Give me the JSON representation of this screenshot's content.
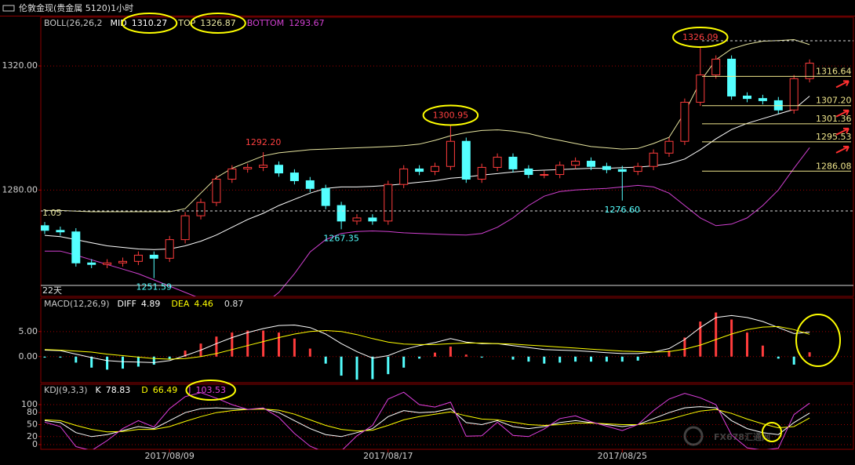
{
  "header": {
    "title": "伦敦金现(贵金属 5120)1小时"
  },
  "watermark": "FX678汇通网",
  "chart_data": [
    {
      "type": "candlestick",
      "indicator": "BOLL(26,26,2",
      "period_note": "22天",
      "edge_label": "1.05",
      "ylim": [
        1245.7,
        1335.7
      ],
      "yticks": [
        {
          "value": 1320,
          "label": "1320.00"
        },
        {
          "value": 1280,
          "label": "1280.00"
        }
      ],
      "grid": true,
      "up_color": "#ff3c3c",
      "down_color": "#54ffff",
      "open": [
        1268.5,
        1267,
        1266.5,
        1256.5,
        1256,
        1256.5,
        1257,
        1259,
        1258,
        1264,
        1271.7,
        1276,
        1283.5,
        1286.8,
        1287.3,
        1288,
        1285.5,
        1283,
        1280.5,
        1275,
        1270,
        1271,
        1270,
        1281.8,
        1286.8,
        1286,
        1287.6,
        1295.7,
        1283.5,
        1287.3,
        1290.6,
        1286.8,
        1285,
        1285,
        1288,
        1289.3,
        1287.6,
        1286.6,
        1286,
        1287.6,
        1291.9,
        1295.7,
        1308.3,
        1317.1,
        1322.2,
        1310.3,
        1309.5,
        1308.8,
        1305.8,
        1315.9
      ],
      "high": [
        1269.7,
        1268.2,
        1267.7,
        1257.7,
        1257.7,
        1258.2,
        1260.2,
        1260.2,
        1265.2,
        1272.9,
        1277.2,
        1284.7,
        1288,
        1288.5,
        1292.2,
        1289.2,
        1286.7,
        1284.2,
        1281.7,
        1276.2,
        1272.2,
        1272.2,
        1283,
        1288,
        1288,
        1288.8,
        1300.95,
        1296.9,
        1288.5,
        1291.8,
        1291.8,
        1288,
        1286.2,
        1289.2,
        1290.5,
        1290.5,
        1288.8,
        1287.8,
        1288.8,
        1293.1,
        1296.9,
        1309.5,
        1326.09,
        1323.4,
        1323.4,
        1311.5,
        1310.7,
        1310,
        1317.1,
        1322.1
      ],
      "low": [
        1265.8,
        1265.3,
        1255.3,
        1254.8,
        1254.8,
        1255.3,
        1255.8,
        1251.59,
        1256.8,
        1262.8,
        1270.5,
        1274.8,
        1282.3,
        1285.6,
        1286.1,
        1284.3,
        1281.8,
        1279.3,
        1273.8,
        1267.35,
        1268.8,
        1268.8,
        1268.8,
        1280.6,
        1284.8,
        1284.8,
        1286.4,
        1282.3,
        1282.3,
        1286.1,
        1285.6,
        1283.8,
        1283.8,
        1283.8,
        1286.8,
        1286.4,
        1285.4,
        1276.6,
        1284.8,
        1286.4,
        1290.7,
        1294.5,
        1307.1,
        1315.9,
        1309.1,
        1308.3,
        1307.6,
        1304.6,
        1304.6,
        1314.7
      ],
      "close": [
        1267,
        1266.5,
        1256.5,
        1256,
        1256.5,
        1257,
        1259,
        1258,
        1264,
        1271.7,
        1276,
        1283.5,
        1286.8,
        1287.3,
        1288,
        1285.5,
        1283,
        1280.5,
        1275,
        1270,
        1271,
        1270,
        1281.8,
        1286.8,
        1286,
        1287.6,
        1295.7,
        1283.5,
        1287.3,
        1290.6,
        1286.8,
        1285,
        1285,
        1288,
        1289.3,
        1287.6,
        1286.6,
        1286,
        1287.6,
        1291.9,
        1295.7,
        1308.3,
        1317.1,
        1322.2,
        1310.3,
        1309.5,
        1308.8,
        1305.8,
        1315.9,
        1320.9
      ],
      "series": [
        {
          "name": "MID",
          "color": "#ffffff",
          "values": [
            1265.4,
            1265,
            1264,
            1263,
            1262,
            1261.5,
            1261,
            1260.8,
            1261,
            1262,
            1263.5,
            1265.5,
            1268,
            1270.5,
            1272.5,
            1275,
            1277,
            1279,
            1280.5,
            1281,
            1281,
            1281.2,
            1281.5,
            1282,
            1282.5,
            1283,
            1283.8,
            1284.2,
            1284.8,
            1285.3,
            1285.8,
            1286.2,
            1286.4,
            1286.6,
            1286.8,
            1287,
            1287,
            1287.2,
            1287.4,
            1287.8,
            1288.5,
            1290,
            1293,
            1296.5,
            1299.5,
            1301.5,
            1303,
            1304.5,
            1306,
            1310.27
          ]
        },
        {
          "name": "TOP",
          "color": "#e8e6a0",
          "values": [
            1273.4,
            1273.4,
            1273.2,
            1273,
            1273,
            1273,
            1273,
            1273,
            1273,
            1274,
            1279,
            1284,
            1287,
            1289,
            1291,
            1292,
            1292.5,
            1293,
            1293.2,
            1293.4,
            1293.6,
            1293.8,
            1294,
            1294.3,
            1294.8,
            1296,
            1297.5,
            1298.5,
            1299.2,
            1299.4,
            1299,
            1298.2,
            1297,
            1296,
            1295,
            1294,
            1293.6,
            1293.2,
            1293.4,
            1295,
            1297,
            1305,
            1315,
            1322,
            1325.5,
            1327,
            1328,
            1328.2,
            1328.5,
            1326.87
          ]
        },
        {
          "name": "BOTTOM",
          "color": "#d040d0",
          "values": [
            1260.3,
            1260.3,
            1259,
            1257.5,
            1256,
            1254.5,
            1253,
            1251,
            1249,
            1247,
            1245,
            1243,
            1242,
            1242,
            1243,
            1247,
            1253,
            1260,
            1264,
            1266,
            1266.6,
            1266.8,
            1266.6,
            1266.2,
            1266,
            1265.8,
            1265.6,
            1265.5,
            1266,
            1268,
            1271,
            1275,
            1278,
            1279.5,
            1280,
            1280.3,
            1280.5,
            1281,
            1281.5,
            1281,
            1279,
            1275,
            1271,
            1268.5,
            1269,
            1271,
            1275,
            1280,
            1287,
            1293.67
          ]
        }
      ],
      "annotations": [
        {
          "value": 1326.09,
          "label": "1326.09"
        },
        {
          "value": 1300.95,
          "label": "1300.95"
        },
        {
          "value": 1292.2,
          "label": "1292.20"
        },
        {
          "value": 1267.35,
          "label": "1267.35"
        },
        {
          "value": 1276.6,
          "label": "1276.60"
        },
        {
          "value": 1251.59,
          "label": "1251.59"
        }
      ],
      "level_color": "#f0e68c",
      "levels": [
        {
          "value": 1316.64,
          "label": "1316.64"
        },
        {
          "value": 1307.2,
          "label": "1307.20"
        },
        {
          "value": 1301.36,
          "label": "1301.36"
        },
        {
          "value": 1295.53,
          "label": "1295.53"
        },
        {
          "value": 1286.08,
          "label": "1286.08"
        }
      ]
    },
    {
      "type": "macd",
      "indicator": "MACD(12,26,9)",
      "ylim": [
        -5.2,
        11.7
      ],
      "yticks": [
        {
          "value": 5,
          "label": "5.00"
        },
        {
          "value": 0,
          "label": "0.00"
        }
      ],
      "grid": true,
      "series": [
        {
          "name": "DIFF",
          "color": "#ffffff",
          "values": [
            1.3,
            1.2,
            0.5,
            -0.2,
            -0.8,
            -1,
            -1.1,
            -1.2,
            -0.8,
            0.2,
            1.3,
            2.6,
            3.8,
            4.8,
            5.6,
            6.2,
            6.3,
            5.8,
            4.5,
            2.6,
            1,
            -0.3,
            0.2,
            1.4,
            2.2,
            2.8,
            3.6,
            2.9,
            2.6,
            2.6,
            2.2,
            1.8,
            1.4,
            1.3,
            1.2,
            1,
            0.8,
            0.6,
            0.6,
            0.9,
            1.6,
            3.4,
            5.8,
            7.8,
            8.2,
            7.8,
            7,
            5.8,
            4.6,
            4.89
          ]
        },
        {
          "name": "DEA",
          "color": "#ffff00",
          "values": [
            1.4,
            1.3,
            1.1,
            0.9,
            0.5,
            0.2,
            -0.1,
            -0.4,
            -0.5,
            -0.4,
            0,
            0.6,
            1.4,
            2.2,
            3,
            3.8,
            4.5,
            5,
            5.2,
            5,
            4.4,
            3.6,
            2.9,
            2.5,
            2.4,
            2.4,
            2.6,
            2.7,
            2.7,
            2.6,
            2.5,
            2.3,
            2.1,
            1.9,
            1.7,
            1.5,
            1.3,
            1.1,
            1,
            0.9,
            1,
            1.5,
            2.3,
            3.4,
            4.5,
            5.4,
            5.9,
            6,
            5.4,
            4.46
          ]
        }
      ],
      "histogram": {
        "up_color": "#ff3c3c",
        "down_color": "#54ffff",
        "values": [
          -0.2,
          -0.2,
          -1.2,
          -2.2,
          -2.6,
          -2.4,
          -2,
          -1.6,
          -0.6,
          1.2,
          2.6,
          4,
          4.8,
          5.2,
          5.2,
          4.8,
          3.6,
          1.6,
          -1.4,
          -3.8,
          -4.6,
          -4.5,
          -3.5,
          -2.2,
          -0.4,
          0.8,
          2,
          0.4,
          -0.2,
          0,
          -0.6,
          -1,
          -1.4,
          -1.2,
          -1,
          -1,
          -1,
          -1,
          -0.8,
          0,
          1.2,
          3.8,
          7,
          8.8,
          7.4,
          4.8,
          2.2,
          -0.4,
          -1.6,
          0.87
        ]
      }
    },
    {
      "type": "line",
      "indicator": "KDJ(9,3,3)",
      "ylim": [
        -11.8,
        151
      ],
      "yticks": [
        100,
        80,
        50,
        20,
        0
      ],
      "grid": true,
      "categories": [
        null,
        null,
        null,
        null,
        null,
        null,
        null,
        null,
        "2017/08/09",
        null,
        null,
        null,
        null,
        null,
        null,
        null,
        null,
        null,
        null,
        null,
        null,
        null,
        "2017/08/17",
        null,
        null,
        null,
        null,
        null,
        null,
        null,
        null,
        null,
        null,
        null,
        null,
        null,
        null,
        "2017/08/25",
        null,
        null,
        null,
        null,
        null,
        null,
        null,
        null,
        null,
        null,
        null,
        null
      ],
      "series": [
        {
          "name": "K",
          "color": "#ffffff",
          "values": [
            60,
            55,
            30,
            20,
            25,
            35,
            45,
            40,
            60,
            80,
            90,
            92,
            90,
            88,
            90,
            80,
            60,
            40,
            25,
            20,
            30,
            40,
            70,
            85,
            80,
            82,
            90,
            55,
            50,
            60,
            45,
            40,
            45,
            55,
            60,
            55,
            50,
            45,
            50,
            65,
            80,
            92,
            95,
            92,
            60,
            40,
            30,
            25,
            55,
            78.83
          ]
        },
        {
          "name": "D",
          "color": "#ffff00",
          "values": [
            62,
            60,
            48,
            38,
            32,
            33,
            38,
            38,
            45,
            58,
            70,
            80,
            85,
            88,
            89,
            86,
            76,
            62,
            48,
            38,
            34,
            36,
            48,
            62,
            70,
            76,
            82,
            72,
            64,
            62,
            56,
            50,
            48,
            50,
            54,
            54,
            52,
            50,
            50,
            55,
            63,
            74,
            84,
            88,
            78,
            64,
            52,
            42,
            45,
            66.49
          ]
        },
        {
          "name": "J",
          "color": "#e040e0",
          "values": [
            56,
            45,
            -5,
            -15,
            10,
            40,
            60,
            44,
            90,
            120,
            130,
            116,
            100,
            88,
            92,
            68,
            28,
            -4,
            -20,
            -16,
            22,
            48,
            114,
            131,
            100,
            94,
            106,
            21,
            22,
            56,
            23,
            20,
            39,
            65,
            72,
            57,
            46,
            35,
            50,
            85,
            114,
            128,
            117,
            100,
            24,
            -8,
            -14,
            -9,
            75,
            103.53
          ]
        }
      ]
    }
  ]
}
